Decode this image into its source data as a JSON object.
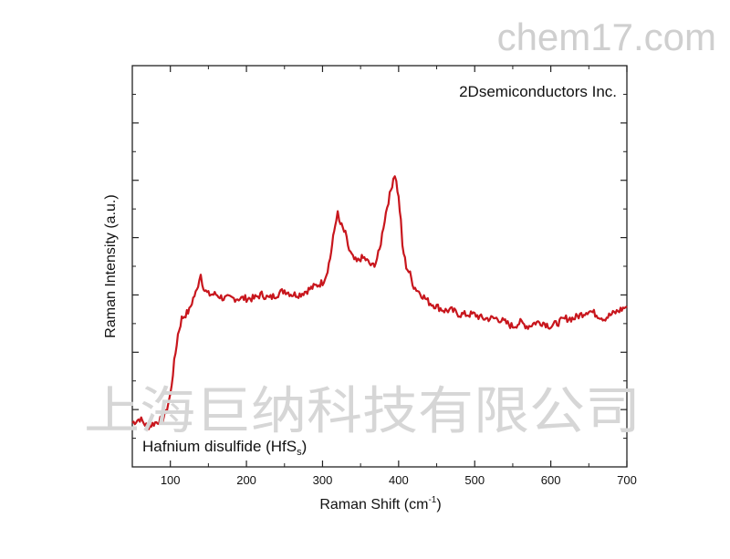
{
  "watermarks": {
    "site": "chem17.com",
    "company": "上海巨纳科技有限公司"
  },
  "chart_data": {
    "type": "line",
    "xlabel": "Raman Shift (cm",
    "xlabel_sup": "-1",
    "xlabel_close": ")",
    "ylabel": "Raman Intensity (a.u.)",
    "xlim": [
      50,
      700
    ],
    "ylim": [
      0,
      1
    ],
    "x_ticks": [
      100,
      200,
      300,
      400,
      500,
      600,
      700
    ],
    "y_tick_labels_shown": false,
    "annotations": {
      "company": "2Dsemiconductors Inc.",
      "sample": "Hafnium disulfide (HfS",
      "sample_sub": "s",
      "sample_close": ")"
    },
    "series": [
      {
        "color": "#c8161d",
        "x": [
          50,
          60,
          70,
          80,
          90,
          95,
          100,
          105,
          110,
          115,
          120,
          125,
          130,
          135,
          138,
          140,
          142,
          145,
          150,
          160,
          170,
          180,
          190,
          200,
          210,
          220,
          230,
          240,
          250,
          260,
          270,
          280,
          290,
          300,
          305,
          310,
          314,
          318,
          320,
          322,
          325,
          330,
          335,
          340,
          345,
          350,
          355,
          360,
          365,
          370,
          375,
          380,
          385,
          390,
          393,
          395,
          397,
          400,
          403,
          405,
          410,
          415,
          420,
          430,
          440,
          450,
          460,
          470,
          480,
          490,
          500,
          510,
          520,
          530,
          540,
          550,
          560,
          570,
          580,
          590,
          600,
          610,
          620,
          630,
          640,
          650,
          660,
          670,
          680,
          690,
          700
        ],
        "y": [
          0.11,
          0.12,
          0.1,
          0.11,
          0.12,
          0.14,
          0.18,
          0.26,
          0.33,
          0.37,
          0.38,
          0.39,
          0.42,
          0.44,
          0.47,
          0.48,
          0.46,
          0.44,
          0.43,
          0.43,
          0.42,
          0.42,
          0.42,
          0.42,
          0.42,
          0.43,
          0.42,
          0.43,
          0.44,
          0.43,
          0.43,
          0.44,
          0.45,
          0.46,
          0.48,
          0.52,
          0.57,
          0.62,
          0.63,
          0.61,
          0.6,
          0.58,
          0.54,
          0.52,
          0.51,
          0.52,
          0.52,
          0.51,
          0.5,
          0.51,
          0.54,
          0.6,
          0.65,
          0.69,
          0.72,
          0.73,
          0.71,
          0.67,
          0.61,
          0.55,
          0.5,
          0.48,
          0.45,
          0.43,
          0.41,
          0.4,
          0.39,
          0.39,
          0.38,
          0.38,
          0.38,
          0.37,
          0.37,
          0.37,
          0.36,
          0.35,
          0.36,
          0.35,
          0.36,
          0.36,
          0.35,
          0.36,
          0.37,
          0.37,
          0.38,
          0.39,
          0.38,
          0.37,
          0.38,
          0.39,
          0.4
        ]
      }
    ]
  }
}
